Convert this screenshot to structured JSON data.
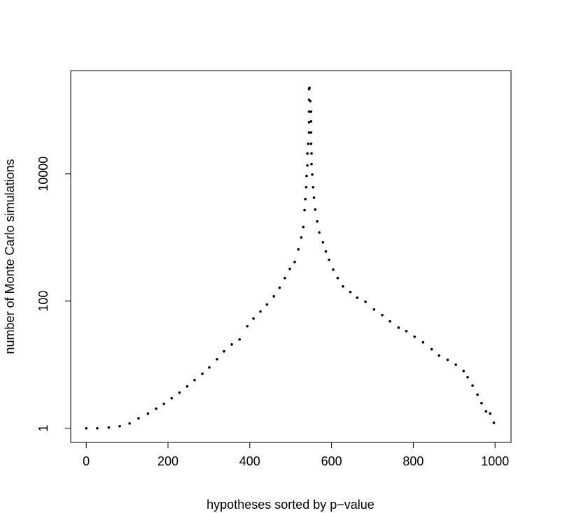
{
  "chart_data": {
    "type": "scatter",
    "xlabel": "hypotheses sorted by p−value",
    "ylabel": "number of Monte Carlo simulations",
    "x": [
      0,
      27,
      55,
      82,
      106,
      128,
      151,
      171,
      190,
      209,
      228,
      247,
      265,
      284,
      301,
      320,
      337,
      356,
      375,
      394,
      409,
      426,
      442,
      459,
      473,
      486,
      498,
      510,
      519,
      526,
      531,
      534,
      536,
      538,
      539,
      541,
      541,
      543,
      545,
      545,
      545,
      545,
      545,
      546,
      548,
      550,
      550,
      550,
      550,
      551,
      551,
      553,
      555,
      557,
      560,
      565,
      570,
      579,
      586,
      594,
      604,
      615,
      628,
      646,
      663,
      683,
      704,
      724,
      743,
      764,
      783,
      803,
      824,
      845,
      863,
      884,
      904,
      923,
      933,
      945,
      957,
      967,
      978,
      988,
      997
    ],
    "values": [
      1,
      1,
      1.03,
      1.08,
      1.19,
      1.43,
      1.7,
      2.03,
      2.42,
      2.97,
      3.63,
      4.56,
      5.73,
      7.2,
      9.04,
      12.2,
      16.2,
      20.8,
      24.9,
      40.2,
      53.1,
      68.4,
      88.1,
      119,
      162,
      230,
      320,
      412,
      650,
      1000,
      1462,
      2684,
      4018,
      6180,
      9270,
      13550,
      20840,
      29700,
      44500,
      65000,
      95000,
      146000,
      214000,
      225000,
      139000,
      95000,
      66700,
      44500,
      29700,
      20840,
      14250,
      9750,
      6180,
      4230,
      2750,
      1790,
      1194,
      838,
      603,
      445,
      312,
      230,
      170,
      139,
      113,
      97.5,
      73.8,
      60.3,
      48,
      38.2,
      33.7,
      27.5,
      22.5,
      17.5,
      13.9,
      11.9,
      10,
      7.96,
      6.34,
      4.68,
      3.37,
      2.49,
      1.84,
      1.7,
      1.22
    ],
    "color": "#000000",
    "xlim": [
      -38,
      1039
    ],
    "ylim": [
      0.6,
      420000
    ],
    "xticks": [
      0,
      200,
      400,
      600,
      800,
      1000
    ],
    "yticks": [
      1,
      100,
      10000
    ],
    "log_y": true,
    "grid": false
  }
}
